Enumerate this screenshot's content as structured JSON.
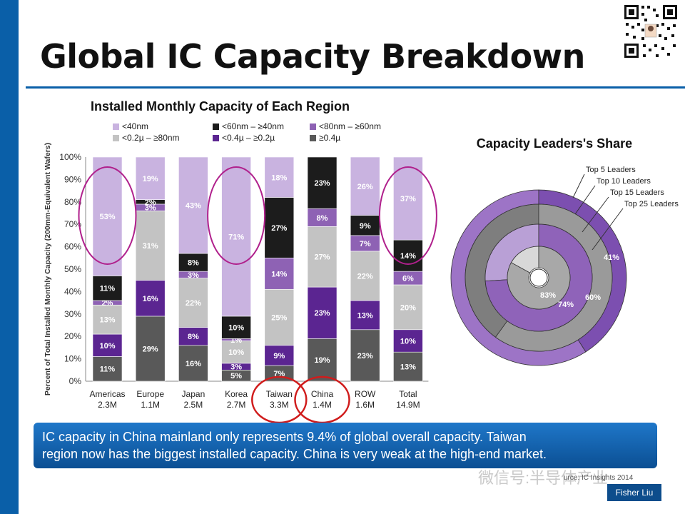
{
  "slide": {
    "title": "Global IC Capacity Breakdown",
    "callout_lines": [
      "IC capacity in China mainland only represents 9.4% of global overall capacity. Taiwan",
      "region now has the biggest installed capacity.  China is very weak at the high-end market."
    ],
    "author_badge": "Fisher Liu",
    "watermark_text": "微信号:半导体产业",
    "source_text": "urce: IC Insights 2014",
    "colors": {
      "accent": "#0a5fa8",
      "circle_purple": "#b0208c",
      "circle_red": "#d01c1c"
    }
  },
  "chart_data": [
    {
      "type": "bar",
      "stacked": true,
      "title": "Installed Monthly Capacity of Each Region",
      "ylabel": "Percent of Total Installed Monthly Capacity (200mm-Equivalent Wafers)",
      "ylim": [
        0,
        100
      ],
      "yticks": [
        "0%",
        "10%",
        "20%",
        "30%",
        "40%",
        "50%",
        "60%",
        "70%",
        "80%",
        "90%",
        "100%"
      ],
      "categories": [
        "Americas",
        "Europe",
        "Japan",
        "Korea",
        "Taiwan",
        "China",
        "ROW",
        "Total"
      ],
      "category_values": [
        "2.3M",
        "1.1M",
        "2.5M",
        "2.7M",
        "3.3M",
        "1.4M",
        "1.6M",
        "14.9M"
      ],
      "legend": [
        "<40nm",
        "<60nm – ≥40nm",
        "<80nm – ≥60nm",
        "<0.2µ – ≥80nm",
        "<0.4µ – ≥0.2µ",
        "≥0.4µ"
      ],
      "series": [
        {
          "name": "≥0.4µ",
          "color": "#595959",
          "values": [
            11,
            29,
            16,
            5,
            7,
            19,
            23,
            13
          ],
          "labels": [
            "11%",
            "29%",
            "16%",
            "5%",
            "7%",
            "19%",
            "23%",
            "13%"
          ]
        },
        {
          "name": "<0.4µ – ≥0.2µ",
          "color": "#5b2591",
          "values": [
            10,
            16,
            8,
            3,
            9,
            23,
            13,
            10
          ],
          "labels": [
            "10%",
            "16%",
            "8%",
            "3%",
            "9%",
            "23%",
            "13%",
            "10%"
          ]
        },
        {
          "name": "<0.2µ – ≥80nm",
          "color": "#c3c3c3",
          "values": [
            13,
            31,
            22,
            10,
            25,
            27,
            22,
            20
          ],
          "labels": [
            "13%",
            "31%",
            "22%",
            "10%",
            "25%",
            "27%",
            "22%",
            "20%"
          ]
        },
        {
          "name": "<80nm – ≥60nm",
          "color": "#8e62b4",
          "values": [
            2,
            3,
            3,
            1,
            14,
            8,
            7,
            6
          ],
          "labels": [
            "2%",
            "3%",
            "3%",
            "1%",
            "14%",
            "8%",
            "7%",
            "6%"
          ]
        },
        {
          "name": "<60nm – ≥40nm",
          "color": "#1c1c1c",
          "values": [
            11,
            2,
            8,
            10,
            27,
            23,
            9,
            14
          ],
          "labels": [
            "11%",
            "2%",
            "8%",
            "10%",
            "27%",
            "23%",
            "9%",
            "14%"
          ]
        },
        {
          "name": "<40nm",
          "color": "#c9b3e0",
          "values": [
            53,
            19,
            43,
            71,
            18,
            0,
            26,
            37
          ],
          "labels": [
            "53%",
            "19%",
            "43%",
            "71%",
            "18%",
            "",
            "26%",
            "37%"
          ]
        }
      ],
      "highlighted_purple": [
        "Americas",
        "Korea",
        "Total"
      ],
      "highlighted_red": [
        "Taiwan",
        "China"
      ]
    },
    {
      "type": "pie",
      "title": "Capacity Leaders's Share",
      "rings": [
        {
          "name": "Top 5 Leaders",
          "value": 41,
          "label": "41%"
        },
        {
          "name": "Top 10 Leaders",
          "value": 60,
          "label": "60%"
        },
        {
          "name": "Top 15 Leaders",
          "value": 74,
          "label": "74%"
        },
        {
          "name": "Top 25 Leaders",
          "value": 83,
          "label": "83%"
        }
      ]
    }
  ]
}
